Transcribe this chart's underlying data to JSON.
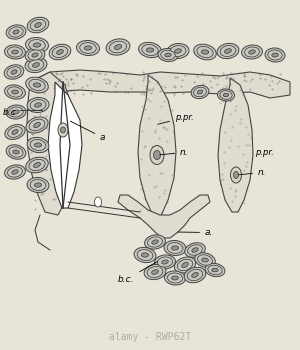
{
  "bg_color": "#e8e4d8",
  "fig_bg": "#e8e4d8",
  "watermark_text": "alamy - RWP62T",
  "watermark_color": "#888888",
  "watermark_alpha": 0.6,
  "label_a1": "a",
  "label_a2": "a.",
  "label_bc1": "b.c",
  "label_bc2": "b.c.",
  "label_n1": "n.",
  "label_n2": "n.",
  "label_ppr1": "p.pr.",
  "label_ppr2": "p.pr.",
  "cell_fill": "#c8c8c0",
  "cell_edge": "#444444",
  "nuc_fill": "#989890",
  "nuc_edge": "#333333",
  "tissue_fill": "#e0ddd0",
  "tissue_edge": "#444444",
  "line_color": "#333333",
  "dot_color": "#666660"
}
